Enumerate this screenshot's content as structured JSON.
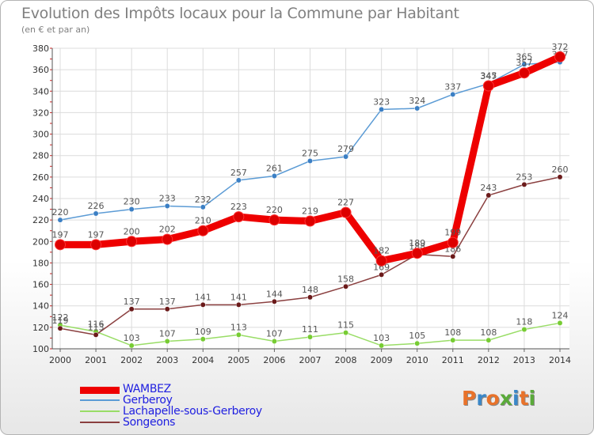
{
  "header": {
    "title": "Evolution des Impôts locaux pour la Commune par Habitant",
    "subtitle": "(en € et par an)"
  },
  "logo": {
    "text": "Proxiti",
    "colors": [
      "#e8722a",
      "#3a87c8",
      "#e8722a",
      "#5aaa3a",
      "#3a87c8",
      "#e8722a",
      "#5aaa3a"
    ]
  },
  "chart_data": {
    "type": "line",
    "title": "Evolution des Impôts locaux pour la Commune par Habitant",
    "subtitle": "(en € et par an)",
    "x": [
      "2000",
      "2001",
      "2002",
      "2003",
      "2004",
      "2005",
      "2006",
      "2007",
      "2008",
      "2009",
      "2010",
      "2011",
      "2012",
      "2013",
      "2014"
    ],
    "ylim": [
      100,
      380
    ],
    "yticks": [
      100,
      120,
      140,
      160,
      180,
      200,
      220,
      240,
      260,
      280,
      300,
      320,
      340,
      360,
      380
    ],
    "grid": true,
    "legend_position": "bottom-left",
    "series": [
      {
        "name": "Gerberoy",
        "color": "#5b9bd5",
        "marker": "#3b7fc4",
        "values": [
          220,
          226,
          230,
          233,
          232,
          257,
          261,
          275,
          279,
          323,
          324,
          337,
          347,
          365,
          367
        ],
        "labels": [
          "220",
          "226",
          "230",
          "233",
          "232",
          "257",
          "261",
          "275",
          "279",
          "323",
          "324",
          "337",
          "347",
          "365",
          "367"
        ]
      },
      {
        "name": "Lachapelle-sous-Gerberoy",
        "color": "#99dd66",
        "marker": "#77cc33",
        "values": [
          122,
          116,
          103,
          107,
          109,
          113,
          107,
          111,
          115,
          103,
          105,
          108,
          108,
          118,
          124
        ],
        "labels": [
          "122",
          "116",
          "103",
          "107",
          "109",
          "113",
          "107",
          "111",
          "115",
          "103",
          "105",
          "108",
          "108",
          "118",
          "124"
        ]
      },
      {
        "name": "Songeons",
        "color": "#8b4040",
        "marker": "#6b1a1a",
        "values": [
          119,
          113,
          137,
          137,
          141,
          141,
          144,
          148,
          158,
          169,
          188,
          186,
          243,
          253,
          260
        ],
        "labels": [
          "119",
          "113",
          "137",
          "137",
          "141",
          "141",
          "144",
          "148",
          "158",
          "169",
          "188",
          "186",
          "243",
          "253",
          "260"
        ]
      },
      {
        "name": "WAMBEZ",
        "color": "#ee0000",
        "marker": "#dd0000",
        "values": [
          197,
          197,
          200,
          202,
          210,
          223,
          220,
          219,
          227,
          182,
          189,
          199,
          345,
          357,
          372
        ],
        "labels": [
          "197",
          "197",
          "200",
          "202",
          "210",
          "223",
          "220",
          "219",
          "227",
          "182",
          "189",
          "199",
          "345",
          "357",
          "372"
        ]
      }
    ],
    "legend": [
      {
        "name": "WAMBEZ",
        "color": "#ee0000"
      },
      {
        "name": "Gerberoy",
        "color": "#5b9bd5"
      },
      {
        "name": "Lachapelle-sous-Gerberoy",
        "color": "#99dd66"
      },
      {
        "name": "Songeons",
        "color": "#8b4040"
      }
    ]
  }
}
